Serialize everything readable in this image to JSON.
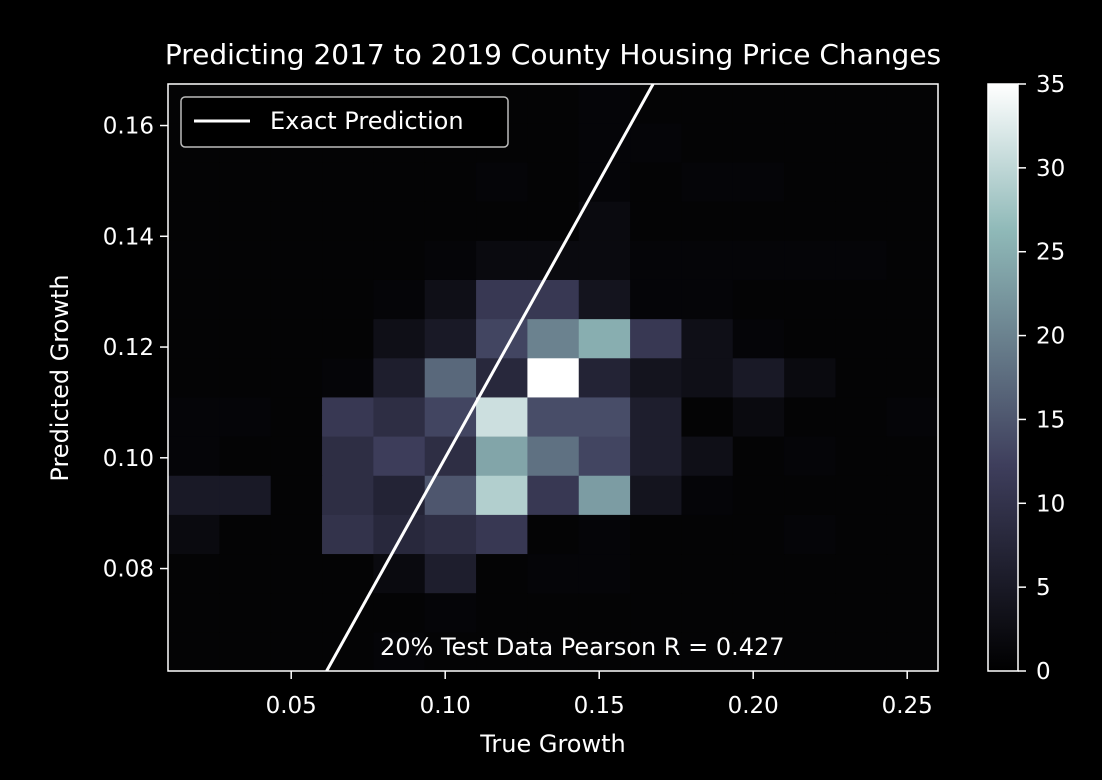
{
  "chart_data": {
    "type": "heatmap",
    "title": "Predicting 2017 to 2019 County Housing Price Changes",
    "xlabel": "True Growth",
    "ylabel": "Predicted Growth",
    "xlim": [
      0.01,
      0.26
    ],
    "ylim": [
      0.0615,
      0.1675
    ],
    "x_ticks": [
      0.05,
      0.1,
      0.15,
      0.2,
      0.25
    ],
    "x_tick_labels": [
      "0.05",
      "0.10",
      "0.15",
      "0.20",
      "0.25"
    ],
    "y_ticks": [
      0.08,
      0.1,
      0.12,
      0.14,
      0.16
    ],
    "y_tick_labels": [
      "0.08",
      "0.10",
      "0.12",
      "0.14",
      "0.16"
    ],
    "bin_x_start": 0.01,
    "bin_x_width": 0.01667,
    "bin_y_start": 0.0615,
    "bin_y_width": 0.00707,
    "bins_x": 15,
    "bins_y": 15,
    "counts": [
      [
        0,
        0,
        0,
        0,
        1,
        0,
        0,
        0,
        0,
        0,
        0,
        0,
        0,
        0,
        0
      ],
      [
        0,
        0,
        0,
        0,
        0,
        1,
        0,
        0,
        0,
        0,
        0,
        0,
        0,
        0,
        0
      ],
      [
        0,
        0,
        0,
        0,
        2,
        6,
        0,
        1,
        1,
        0,
        0,
        0,
        0,
        0,
        0
      ],
      [
        2,
        0,
        0,
        10,
        8,
        9,
        11,
        0,
        1,
        0,
        0,
        0,
        1,
        0,
        0
      ],
      [
        5,
        5,
        0,
        9,
        7,
        15,
        29,
        11,
        23,
        4,
        1,
        0,
        0,
        0,
        0
      ],
      [
        1,
        0,
        0,
        9,
        12,
        9,
        24,
        18,
        13,
        6,
        3,
        0,
        1,
        0,
        0
      ],
      [
        1,
        1,
        0,
        11,
        9,
        13,
        31,
        14,
        14,
        6,
        0,
        2,
        0,
        0,
        1
      ],
      [
        0,
        0,
        0,
        1,
        6,
        17,
        8,
        35,
        7,
        4,
        3,
        5,
        2,
        0,
        0
      ],
      [
        0,
        0,
        0,
        0,
        3,
        5,
        13,
        20,
        25,
        11,
        3,
        1,
        0,
        0,
        0
      ],
      [
        0,
        0,
        0,
        0,
        1,
        3,
        11,
        11,
        4,
        1,
        1,
        0,
        0,
        0,
        0
      ],
      [
        0,
        0,
        0,
        0,
        0,
        1,
        2,
        2,
        2,
        1,
        1,
        1,
        1,
        1,
        0
      ],
      [
        0,
        0,
        0,
        0,
        0,
        0,
        0,
        0,
        2,
        0,
        0,
        0,
        0,
        0,
        0
      ],
      [
        0,
        0,
        0,
        0,
        0,
        0,
        1,
        0,
        1,
        0,
        1,
        1,
        0,
        0,
        0
      ],
      [
        0,
        0,
        0,
        0,
        0,
        0,
        0,
        0,
        1,
        1,
        0,
        0,
        0,
        0,
        0
      ],
      [
        0,
        0,
        0,
        0,
        0,
        0,
        0,
        0,
        1,
        0,
        0,
        0,
        0,
        0,
        0
      ]
    ],
    "colorbar": {
      "min": 0,
      "max": 35,
      "ticks": [
        0,
        5,
        10,
        15,
        20,
        25,
        30,
        35
      ],
      "tick_labels": [
        "0",
        "5",
        "10",
        "15",
        "20",
        "25",
        "30",
        "35"
      ]
    },
    "line": {
      "name": "Exact Prediction",
      "points": [
        [
          0.0615,
          0.0615
        ],
        [
          0.1675,
          0.1675
        ]
      ]
    },
    "legend": {
      "position": "top-left",
      "entries": [
        "Exact Prediction"
      ]
    },
    "annotation": "20% Test Data Pearson R = 0.427",
    "grid": false
  }
}
